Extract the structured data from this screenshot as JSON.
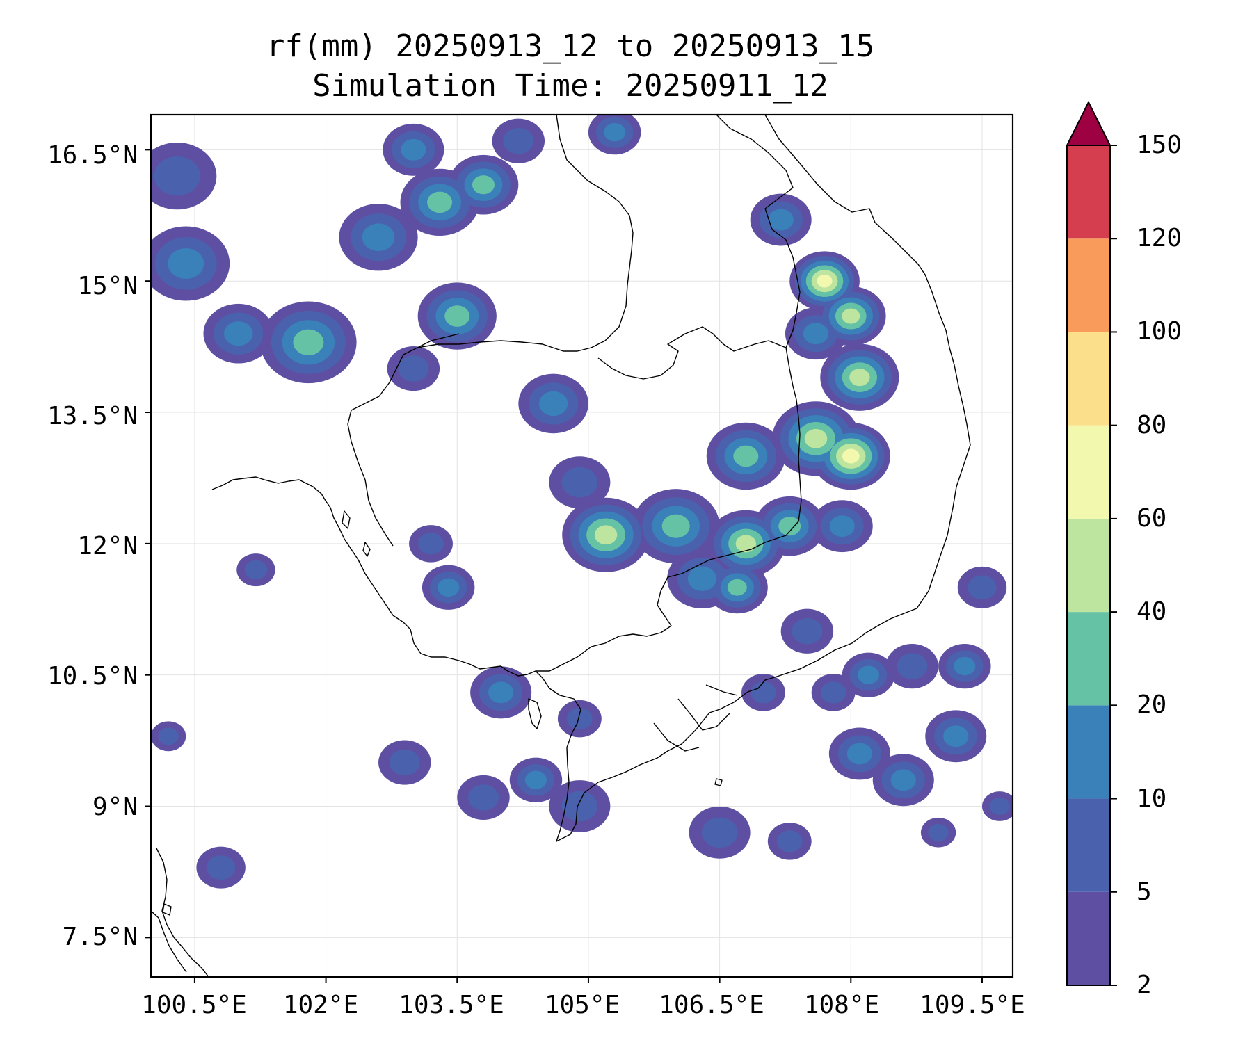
{
  "title": {
    "line1": "rf(mm) 20250913_12 to 20250913_15",
    "line2": "Simulation Time: 20250911_12"
  },
  "map": {
    "lon_range": [
      100.0,
      109.85
    ],
    "lat_range": [
      7.05,
      16.9
    ],
    "lat_ticks": [
      "16.5°N",
      "15°N",
      "13.5°N",
      "12°N",
      "10.5°N",
      "9°N",
      "7.5°N"
    ],
    "lon_ticks": [
      "100.5°E",
      "102°E",
      "103.5°E",
      "105°E",
      "106.5°E",
      "108°E",
      "109.5°E"
    ],
    "gridlines": true,
    "coastline_color": "#000000"
  },
  "colorbar": {
    "variable": "rf(mm)",
    "levels": [
      2,
      5,
      10,
      20,
      40,
      60,
      80,
      100,
      120,
      150
    ],
    "level_labels": [
      "2",
      "5",
      "10",
      "20",
      "40",
      "60",
      "80",
      "100",
      "120",
      "150"
    ],
    "colors": [
      "#5e4fa2",
      "#4a62ad",
      "#3a80b9",
      "#66c2a5",
      "#bde5a0",
      "#f2f8ad",
      "#fbdf8a",
      "#f99c5b",
      "#d53e4f"
    ],
    "extend_color": "#9e0142",
    "extend": "max"
  }
}
